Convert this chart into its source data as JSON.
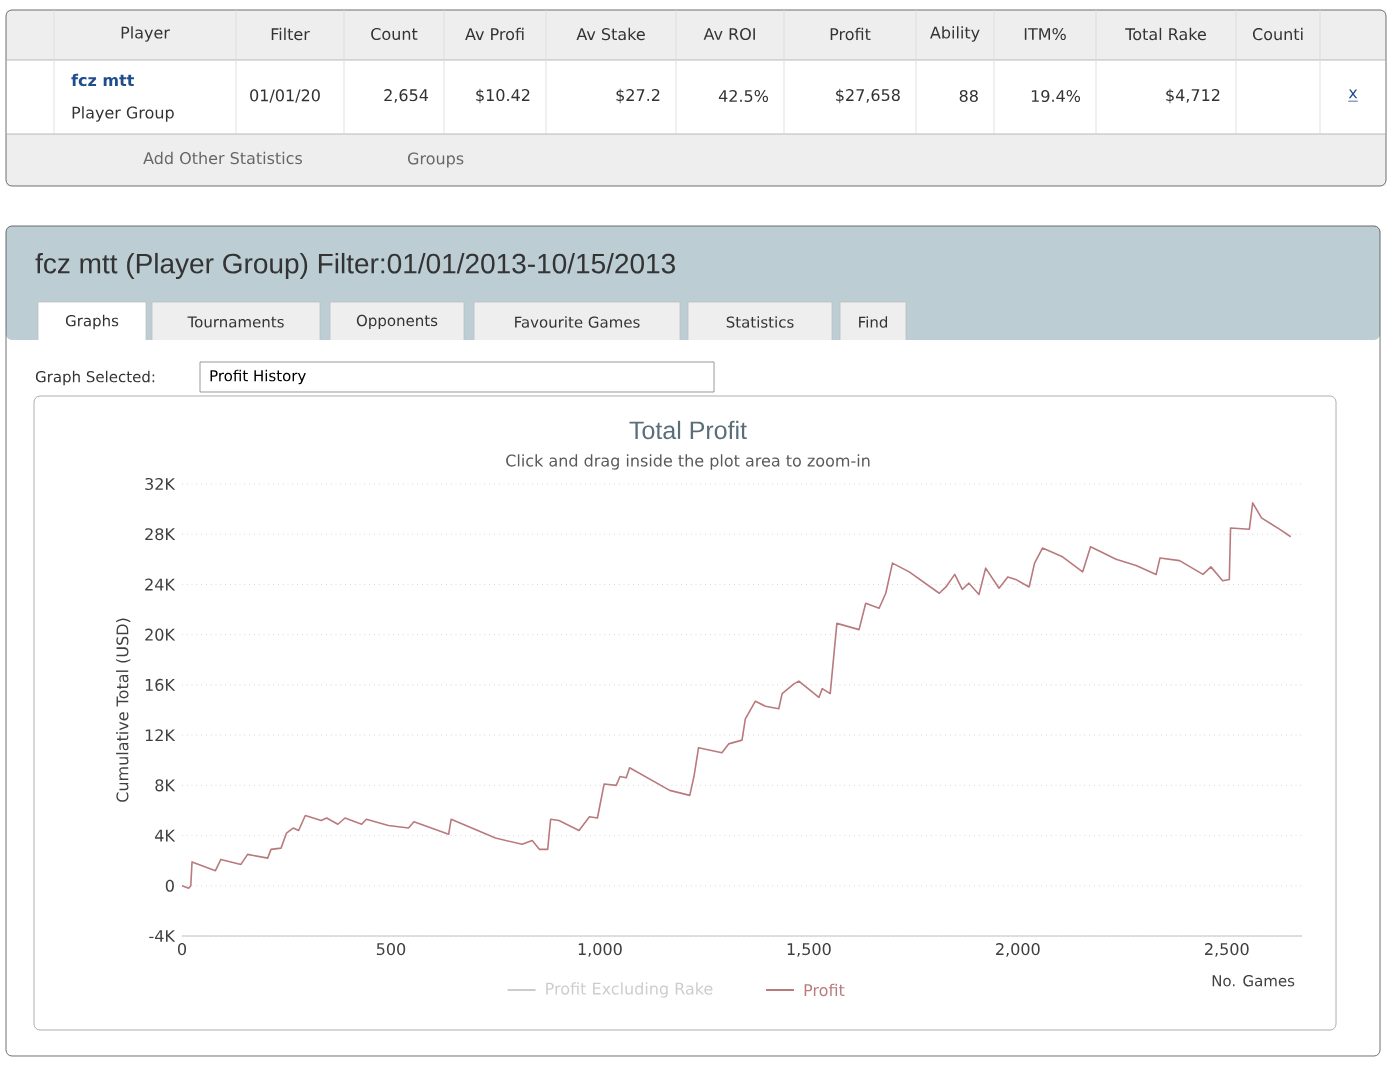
{
  "chart_data": {
    "type": "line",
    "title": "Total Profit",
    "subtitle": "Click and drag inside the plot area to zoom-in",
    "xlabel": "No. Games",
    "ylabel": "Cumulative Total (USD)",
    "xlim": [
      0,
      2680
    ],
    "ylim": [
      -4000,
      32000
    ],
    "xticks": [
      0,
      500,
      {
        "value": 1000,
        "label": "1,000"
      },
      {
        "value": 1500,
        "label": "1,500"
      },
      {
        "value": 2000,
        "label": "2,000"
      },
      {
        "value": 2500,
        "label": "2,500"
      }
    ],
    "yticks": [
      {
        "value": -4000,
        "label": "-4K"
      },
      0,
      {
        "value": 4000,
        "label": "4K"
      },
      {
        "value": 8000,
        "label": "8K"
      },
      {
        "value": 12000,
        "label": "12K"
      },
      {
        "value": 16000,
        "label": "16K"
      },
      {
        "value": 20000,
        "label": "20K"
      },
      {
        "value": 24000,
        "label": "24K"
      },
      {
        "value": 28000,
        "label": "28K"
      },
      {
        "value": 32000,
        "label": "32K"
      }
    ],
    "grid": "y",
    "legend": "bottom",
    "marker": "none",
    "line_style": "solid",
    "series": [
      {
        "name": "Profit Excluding Rake",
        "color": "#cccccc"
      },
      {
        "name": "Profit",
        "color": "#b97a7e",
        "x": [
          0,
          16,
          21,
          24,
          80,
          93,
          141,
          157,
          205,
          213,
          237,
          250,
          266,
          279,
          295,
          333,
          346,
          373,
          390,
          430,
          441,
          494,
          542,
          555,
          638,
          644,
          750,
          814,
          838,
          855,
          875,
          882,
          902,
          950,
          975,
          994,
          1010,
          1039,
          1048,
          1063,
          1071,
          1167,
          1215,
          1225,
          1236,
          1292,
          1308,
          1340,
          1348,
          1372,
          1396,
          1428,
          1436,
          1465,
          1476,
          1524,
          1532,
          1551,
          1567,
          1620,
          1636,
          1668,
          1684,
          1700,
          1740,
          1812,
          1828,
          1849,
          1867,
          1883,
          1907,
          1923,
          1955,
          1976,
          1995,
          2027,
          2040,
          2059,
          2107,
          2155,
          2174,
          2235,
          2283,
          2331,
          2340,
          2387,
          2443,
          2462,
          2490,
          2506,
          2509,
          2554,
          2562,
          2583,
          2626,
          2653
        ],
        "values": [
          0,
          -200,
          0,
          1900,
          1200,
          2100,
          1700,
          2500,
          2200,
          2900,
          3000,
          4200,
          4600,
          4400,
          5600,
          5200,
          5400,
          4900,
          5400,
          4900,
          5300,
          4800,
          4600,
          5100,
          4100,
          5300,
          3800,
          3300,
          3600,
          2900,
          2900,
          5300,
          5200,
          4400,
          5500,
          5400,
          8100,
          8000,
          8700,
          8600,
          9400,
          7600,
          7200,
          8700,
          11000,
          10600,
          11300,
          11600,
          13300,
          14700,
          14300,
          14100,
          15300,
          16100,
          16300,
          15000,
          15700,
          15300,
          20900,
          20400,
          22500,
          22100,
          23300,
          25700,
          25000,
          23300,
          23800,
          24800,
          23600,
          24100,
          23200,
          25300,
          23700,
          24600,
          24400,
          23800,
          25700,
          26900,
          26200,
          25000,
          27000,
          26000,
          25500,
          24800,
          26100,
          25900,
          24800,
          25400,
          24300,
          24400,
          28500,
          28400,
          30500,
          29300,
          28400,
          27800
        ]
      }
    ],
    "annotations": [
      "Player",
      "Filter",
      "Count",
      "Av Profi",
      "Av Stake",
      "Av ROI",
      "Profit",
      "Ability",
      "ITM%",
      "Total Rake",
      "Counti",
      "fcz mtt",
      "Player Group",
      "01/01/20",
      "2,654",
      "$10.42",
      "$27.2",
      "42.5%",
      "$27,658",
      "88",
      "19.4%",
      "$4,712",
      "x",
      "Add Other Statistics",
      "Groups",
      "fcz mtt (Player Group) Filter:01/01/2013-10/15/2013",
      "Graphs",
      "Tournaments",
      "Opponents",
      "Favourite Games",
      "Statistics",
      "Find",
      "Graph Selected:",
      "Profit History"
    ]
  }
}
